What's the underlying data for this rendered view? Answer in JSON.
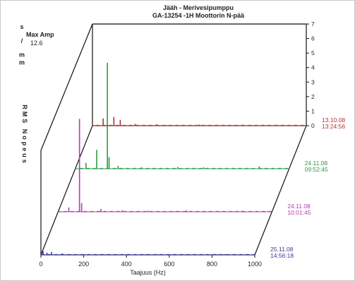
{
  "chart_data": {
    "type": "waterfall",
    "title": "Jääh - Merivesipumppu",
    "subtitle": "GA-13254 -1H    Moottorin N-pää",
    "max_amp_label": "Max Amp",
    "max_amp_value": "12.6",
    "xlabel": "Taajuus (Hz)",
    "xlim": [
      0,
      1000
    ],
    "x_ticks": [
      0,
      200,
      400,
      600,
      800,
      1000
    ],
    "ylim": [
      0,
      7
    ],
    "y_ticks": [
      0,
      1,
      2,
      3,
      4,
      5,
      6,
      7
    ],
    "ylabel_top": "s / mm",
    "ylabel_side": "RMS Nopeus",
    "series": [
      {
        "date": "25.11.08",
        "time": "14:56:18",
        "color": "#3a3a9c",
        "peaks": [
          [
            10,
            0.25
          ],
          [
            28,
            0.15
          ],
          [
            50,
            0.2
          ],
          [
            100,
            0.1
          ],
          [
            250,
            0.05
          ],
          [
            400,
            0.04
          ],
          [
            600,
            0.04
          ],
          [
            860,
            0.05
          ]
        ]
      },
      {
        "date": "24.11.08",
        "time": "10:01:45",
        "color": "#b43cb4",
        "peaks": [
          [
            50,
            0.3
          ],
          [
            100,
            6.4
          ],
          [
            110,
            0.6
          ],
          [
            200,
            0.2
          ],
          [
            300,
            0.1
          ],
          [
            420,
            0.08
          ],
          [
            600,
            0.1
          ],
          [
            860,
            0.08
          ]
        ]
      },
      {
        "date": "24.11.08",
        "time": "09:52:45",
        "color": "#2e9a46",
        "peaks": [
          [
            50,
            0.4
          ],
          [
            100,
            1.3
          ],
          [
            150,
            7.3
          ],
          [
            158,
            0.8
          ],
          [
            200,
            0.2
          ],
          [
            310,
            0.1
          ],
          [
            480,
            0.12
          ],
          [
            600,
            0.1
          ],
          [
            860,
            0.15
          ]
        ]
      },
      {
        "date": "13.10.08",
        "time": "13:24:56",
        "color": "#b43232",
        "peaks": [
          [
            50,
            0.5
          ],
          [
            100,
            0.6
          ],
          [
            130,
            0.4
          ],
          [
            200,
            0.12
          ],
          [
            300,
            0.1
          ],
          [
            500,
            0.08
          ],
          [
            700,
            0.06
          ],
          [
            860,
            0.05
          ]
        ]
      }
    ]
  }
}
